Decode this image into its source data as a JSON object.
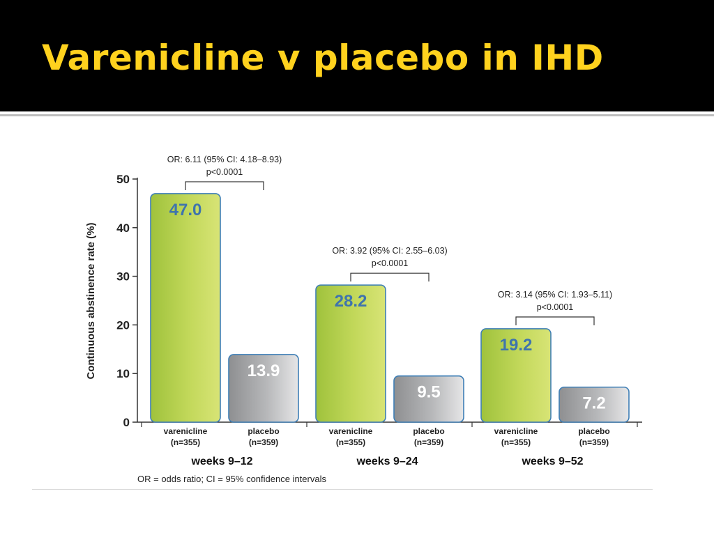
{
  "slide": {
    "title": "Varenicline v placebo in IHD"
  },
  "chart_data": {
    "type": "bar",
    "ylabel": "Continuous abstinence rate (%)",
    "ylim": [
      0,
      50
    ],
    "yticks": [
      "0",
      "10",
      "20",
      "30",
      "40",
      "50"
    ],
    "grid": false,
    "footnote": "OR = odds ratio; CI = 95% confidence intervals",
    "groups": [
      {
        "label": "weeks 9–12",
        "or_text": "OR: 6.11 (95% CI: 4.18–8.93)",
        "p_text": "p<0.0001",
        "bars": [
          {
            "name": "varenicline",
            "n": "(n=355)",
            "value": 47.0,
            "label": "47.0"
          },
          {
            "name": "placebo",
            "n": "(n=359)",
            "value": 13.9,
            "label": "13.9"
          }
        ]
      },
      {
        "label": "weeks 9–24",
        "or_text": "OR: 3.92 (95% CI: 2.55–6.03)",
        "p_text": "p<0.0001",
        "bars": [
          {
            "name": "varenicline",
            "n": "(n=355)",
            "value": 28.2,
            "label": "28.2"
          },
          {
            "name": "placebo",
            "n": "(n=359)",
            "value": 9.5,
            "label": "9.5"
          }
        ]
      },
      {
        "label": "weeks 9–52",
        "or_text": "OR: 3.14 (95% CI: 1.93–5.11)",
        "p_text": "p<0.0001",
        "bars": [
          {
            "name": "varenicline",
            "n": "(n=355)",
            "value": 19.2,
            "label": "19.2"
          },
          {
            "name": "placebo",
            "n": "(n=359)",
            "value": 7.2,
            "label": "7.2"
          }
        ]
      }
    ],
    "colors": {
      "varenicline_fill": "#b4ce4a",
      "varenicline_border": "#3f7fb6",
      "varenicline_value": "#3f74ad",
      "placebo_fill": "#a9aaac",
      "placebo_border": "#3f7fb6",
      "placebo_value": "#ffffff"
    }
  }
}
